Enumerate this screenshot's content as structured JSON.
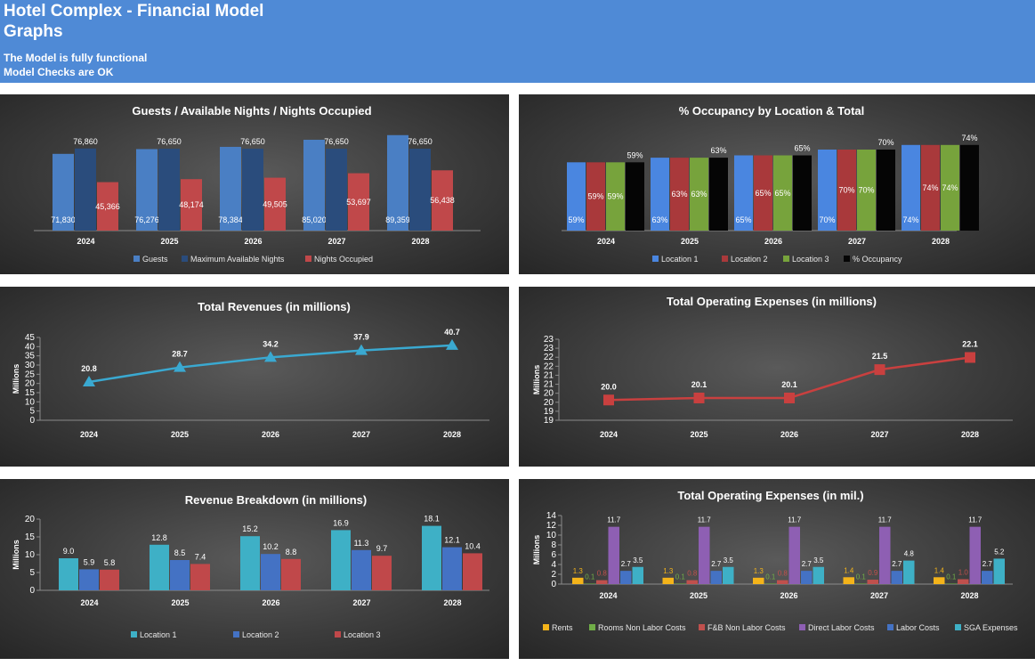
{
  "header": {
    "title": "Hotel Complex - Financial Model",
    "subtitle": "Graphs",
    "status_line1": "The Model is fully functional",
    "status_line2": "Model Checks are OK",
    "background": "#4f8ad6"
  },
  "chart_data": [
    {
      "id": "guests",
      "type": "bar",
      "title": "Guests / Available Nights / Nights Occupied",
      "categories": [
        "2024",
        "2025",
        "2026",
        "2027",
        "2028"
      ],
      "series": [
        {
          "name": "Guests",
          "color": "#4a7fc4",
          "values": [
            71830,
            76276,
            78384,
            85020,
            89359
          ],
          "labels": [
            "71,830",
            "76,276",
            "78,384",
            "85,020",
            "89,359"
          ]
        },
        {
          "name": "Maximum Available Nights",
          "color": "#2a4c7c",
          "values": [
            76860,
            76650,
            76650,
            76650,
            76650
          ],
          "labels": [
            "76,860",
            "76,650",
            "76,650",
            "76,650",
            "76,650"
          ]
        },
        {
          "name": "Nights Occupied",
          "color": "#c0484a",
          "values": [
            45366,
            48174,
            49505,
            53697,
            56438
          ],
          "labels": [
            "45,366",
            "48,174",
            "49,505",
            "53,697",
            "56,438"
          ]
        }
      ],
      "legend": "bottom"
    },
    {
      "id": "occupancy",
      "type": "bar",
      "title": "% Occupancy by Location & Total",
      "categories": [
        "2024",
        "2025",
        "2026",
        "2027",
        "2028"
      ],
      "series": [
        {
          "name": "Location 1",
          "color": "#4a86e0",
          "values": [
            59,
            63,
            65,
            70,
            74
          ],
          "labels": [
            "59%",
            "63%",
            "65%",
            "70%",
            "74%"
          ]
        },
        {
          "name": "Location 2",
          "color": "#a9393b",
          "values": [
            59,
            63,
            65,
            70,
            74
          ],
          "labels": [
            "59%",
            "63%",
            "65%",
            "70%",
            "74%"
          ]
        },
        {
          "name": "Location 3",
          "color": "#77a33c",
          "values": [
            59,
            63,
            65,
            70,
            74
          ],
          "labels": [
            "59%",
            "63%",
            "65%",
            "70%",
            "74%"
          ]
        },
        {
          "name": "% Occupancy",
          "color": "#050505",
          "values": [
            59,
            63,
            65,
            70,
            74
          ],
          "labels": [
            "59%",
            "63%",
            "65%",
            "70%",
            "74%"
          ]
        }
      ],
      "legend": "bottom"
    },
    {
      "id": "revenues",
      "type": "line",
      "title": "Total Revenues (in millions)",
      "ylabel": "Millions",
      "categories": [
        "2024",
        "2025",
        "2026",
        "2027",
        "2028"
      ],
      "ylim": [
        0,
        45
      ],
      "yticks": [
        "0",
        "5",
        "10",
        "15",
        "20",
        "25",
        "30",
        "35",
        "40",
        "45"
      ],
      "series": [
        {
          "color": "#3aa9d1",
          "values": [
            20.8,
            28.7,
            34.2,
            37.9,
            40.7
          ],
          "labels": [
            "20.8",
            "28.7",
            "34.2",
            "37.9",
            "40.7"
          ]
        }
      ],
      "marker": "triangle"
    },
    {
      "id": "opex",
      "type": "line",
      "title": "Total Operating Expenses (in millions)",
      "ylabel": "Millions",
      "categories": [
        "2024",
        "2025",
        "2026",
        "2027",
        "2028"
      ],
      "ylim": [
        19,
        23
      ],
      "yticks": [
        "19",
        "19",
        "20",
        "20",
        "21",
        "21",
        "22",
        "22",
        "23",
        "23"
      ],
      "series": [
        {
          "color": "#c9403f",
          "values": [
            20.0,
            20.1,
            20.1,
            21.5,
            22.1
          ],
          "labels": [
            "20.0",
            "20.1",
            "20.1",
            "21.5",
            "22.1"
          ]
        }
      ],
      "marker": "square"
    },
    {
      "id": "revbreak",
      "type": "bar",
      "title": "Revenue Breakdown (in millions)",
      "ylabel": "Millions",
      "categories": [
        "2024",
        "2025",
        "2026",
        "2027",
        "2028"
      ],
      "ylim": [
        0,
        20
      ],
      "yticks": [
        "0",
        "5",
        "10",
        "15",
        "20"
      ],
      "series": [
        {
          "name": "Location 1",
          "color": "#3eb0c6",
          "values": [
            9.0,
            12.8,
            15.2,
            16.9,
            18.1
          ],
          "labels": [
            "9.0",
            "12.8",
            "15.2",
            "16.9",
            "18.1"
          ]
        },
        {
          "name": "Location 2",
          "color": "#4472c4",
          "values": [
            5.9,
            8.5,
            10.2,
            11.3,
            12.1
          ],
          "labels": [
            "5.9",
            "8.5",
            "10.2",
            "11.3",
            "12.1"
          ]
        },
        {
          "name": "Location 3",
          "color": "#c0484a",
          "values": [
            5.8,
            7.4,
            8.8,
            9.7,
            10.4
          ],
          "labels": [
            "5.8",
            "7.4",
            "8.8",
            "9.7",
            "10.4"
          ]
        }
      ],
      "legend": "bottom"
    },
    {
      "id": "opexbreak",
      "type": "bar",
      "title": "Total Operating Expenses (in mil.)",
      "ylabel": "Millions",
      "categories": [
        "2024",
        "2025",
        "2026",
        "2027",
        "2028"
      ],
      "ylim": [
        0,
        14
      ],
      "yticks": [
        "0",
        "2",
        "4",
        "6",
        "8",
        "10",
        "12",
        "14"
      ],
      "series": [
        {
          "name": "Rents",
          "color": "#f4b41a",
          "values": [
            1.3,
            1.3,
            1.3,
            1.4,
            1.4
          ],
          "labels": [
            "1.3",
            "1.3",
            "1.3",
            "1.4",
            "1.4"
          ]
        },
        {
          "name": "Rooms Non Labor Costs",
          "color": "#70ad47",
          "values": [
            0.1,
            0.1,
            0.1,
            0.1,
            0.1
          ],
          "labels": [
            "0.1",
            "0.1",
            "0.1",
            "0.1",
            "0.1"
          ]
        },
        {
          "name": "F&B Non Labor Costs",
          "color": "#c0504d",
          "values": [
            0.8,
            0.8,
            0.8,
            0.9,
            1.0
          ],
          "labels": [
            "0.8",
            "0.8",
            "0.8",
            "0.9",
            "1.0"
          ]
        },
        {
          "name": "Direct Labor Costs",
          "color": "#8e5fb3",
          "values": [
            11.7,
            11.7,
            11.7,
            11.7,
            11.7
          ],
          "labels": [
            "11.7",
            "11.7",
            "11.7",
            "11.7",
            "11.7"
          ]
        },
        {
          "name": "Labor Costs",
          "color": "#4472c4",
          "values": [
            2.7,
            2.7,
            2.7,
            2.7,
            2.7
          ],
          "labels": [
            "2.7",
            "2.7",
            "2.7",
            "2.7",
            "2.7"
          ]
        },
        {
          "name": "SGA Expenses",
          "color": "#3eb0c6",
          "values": [
            3.5,
            3.5,
            3.5,
            4.8,
            5.2
          ],
          "labels": [
            "3.5",
            "3.5",
            "3.5",
            "4.8",
            "5.2"
          ]
        }
      ],
      "legend": "bottom"
    }
  ]
}
